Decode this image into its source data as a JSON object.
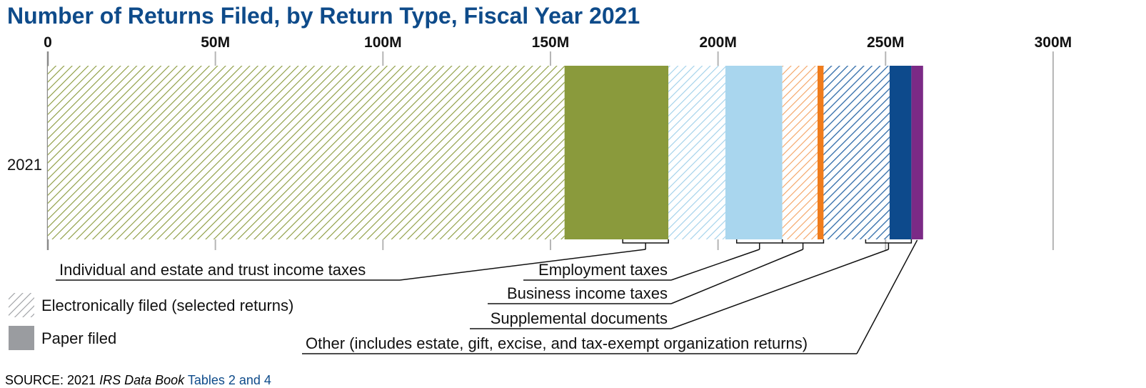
{
  "chart_data": {
    "type": "bar",
    "orientation": "horizontal",
    "stacked": true,
    "title": "Number of Returns Filed, by Return Type, Fiscal Year 2021",
    "categories": [
      "2021"
    ],
    "xlim": [
      0,
      300000000
    ],
    "x_ticks": [
      {
        "value": 0,
        "label": "0"
      },
      {
        "value": 50000000,
        "label": "50M"
      },
      {
        "value": 100000000,
        "label": "100M"
      },
      {
        "value": 150000000,
        "label": "150M"
      },
      {
        "value": 200000000,
        "label": "200M"
      },
      {
        "value": 250000000,
        "label": "250M"
      },
      {
        "value": 300000000,
        "label": "300M"
      }
    ],
    "grid": true,
    "series": [
      {
        "group": "Individual and estate and trust income taxes",
        "method": "electronic",
        "values": [
          154200000
        ],
        "color": "#8a9a3c"
      },
      {
        "group": "Individual and estate and trust income taxes",
        "method": "paper",
        "values": [
          31000000
        ],
        "color": "#8a9a3c"
      },
      {
        "group": "Employment taxes",
        "method": "electronic",
        "values": [
          17000000
        ],
        "color": "#9fd0ea"
      },
      {
        "group": "Employment taxes",
        "method": "paper",
        "values": [
          17000000
        ],
        "color": "#a9d6ee"
      },
      {
        "group": "Business income taxes",
        "method": "electronic",
        "values": [
          10500000
        ],
        "color": "#f4a261"
      },
      {
        "group": "Business income taxes",
        "method": "paper",
        "values": [
          1800000
        ],
        "color": "#f07c1c"
      },
      {
        "group": "Supplemental documents",
        "method": "electronic",
        "values": [
          19700000
        ],
        "color": "#2e6aa8"
      },
      {
        "group": "Supplemental documents",
        "method": "paper",
        "values": [
          6500000
        ],
        "color": "#0d4a8c"
      },
      {
        "group": "Other (includes estate, gift, excise, and tax-exempt organization returns)",
        "method": "total",
        "values": [
          3500000
        ],
        "color": "#7b2a86"
      }
    ],
    "annotations": [
      "Individual and estate and trust income taxes",
      "Employment taxes",
      "Business income taxes",
      "Supplemental documents",
      "Other (includes estate, gift, excise, and tax-exempt organization returns)"
    ],
    "legend": {
      "placement": "bottom-left",
      "items": [
        {
          "label": "Electronically filed (selected returns)",
          "style": "hatched",
          "color": "#9a9ca0"
        },
        {
          "label": "Paper filed",
          "style": "solid",
          "color": "#9a9ca0"
        }
      ]
    }
  },
  "source": {
    "prefix": "SOURCE: 2021 ",
    "italic": "IRS Data Book",
    "link": "Tables 2 and 4"
  }
}
